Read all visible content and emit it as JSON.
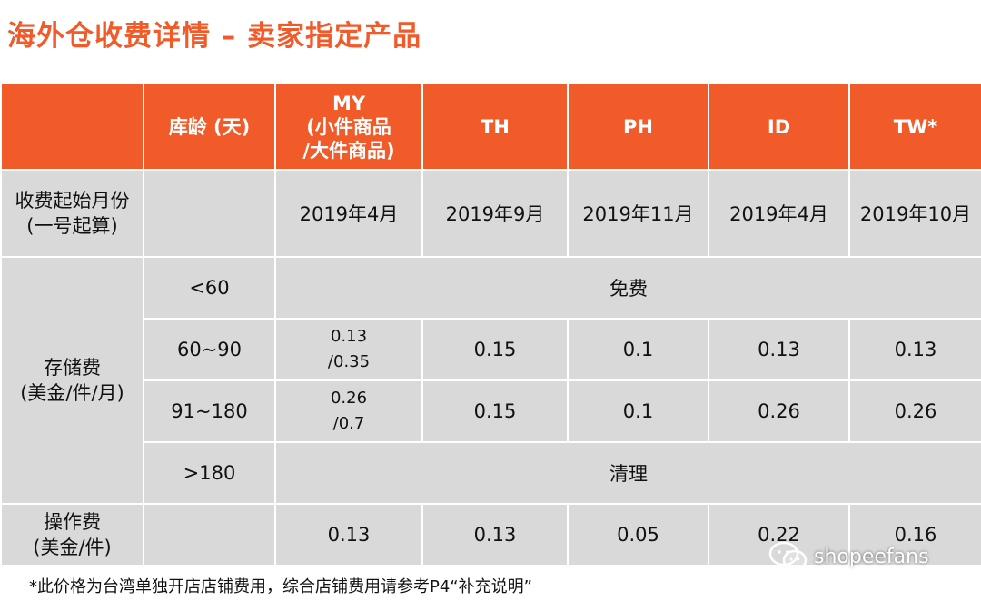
{
  "title": "海外仓收费详情 – 卖家指定产品",
  "header": {
    "age_label": "库龄 (天)",
    "my_line1": "MY",
    "my_line2": "(小件商品",
    "my_line3": "/大件商品)",
    "th": "TH",
    "ph": "PH",
    "id": "ID",
    "tw": "TW*"
  },
  "start_month": {
    "label_line1": "收费起始月份",
    "label_line2": "(一号起算)",
    "my": "2019年4月",
    "th": "2019年9月",
    "ph": "2019年11月",
    "id": "2019年4月",
    "tw": "2019年10月"
  },
  "storage": {
    "label_line1": "存储费",
    "label_line2": "(美金/件/月)",
    "rows": [
      {
        "age": "<60",
        "merged": "免费"
      },
      {
        "age": "60~90",
        "my_line1": "0.13",
        "my_line2": "/0.35",
        "th": "0.15",
        "ph": "0.1",
        "id": "0.13",
        "tw": "0.13"
      },
      {
        "age": "91~180",
        "my_line1": "0.26",
        "my_line2": "/0.7",
        "th": "0.15",
        "ph": "0.1",
        "id": "0.26",
        "tw": "0.26"
      },
      {
        "age": ">180",
        "merged": "清理"
      }
    ]
  },
  "operation": {
    "label_line1": "操作费",
    "label_line2": "(美金/件)",
    "my": "0.13",
    "th": "0.13",
    "ph": "0.05",
    "id": "0.22",
    "tw": "0.16"
  },
  "footnote": "*此价格为台湾单独开店店铺费用，综合店铺费用请参考P4“补充说明”",
  "watermark": {
    "icon": "wechat-icon",
    "text": "shopeefans"
  },
  "colors": {
    "accent": "#f15a29",
    "cell": "#d9d9d9"
  }
}
